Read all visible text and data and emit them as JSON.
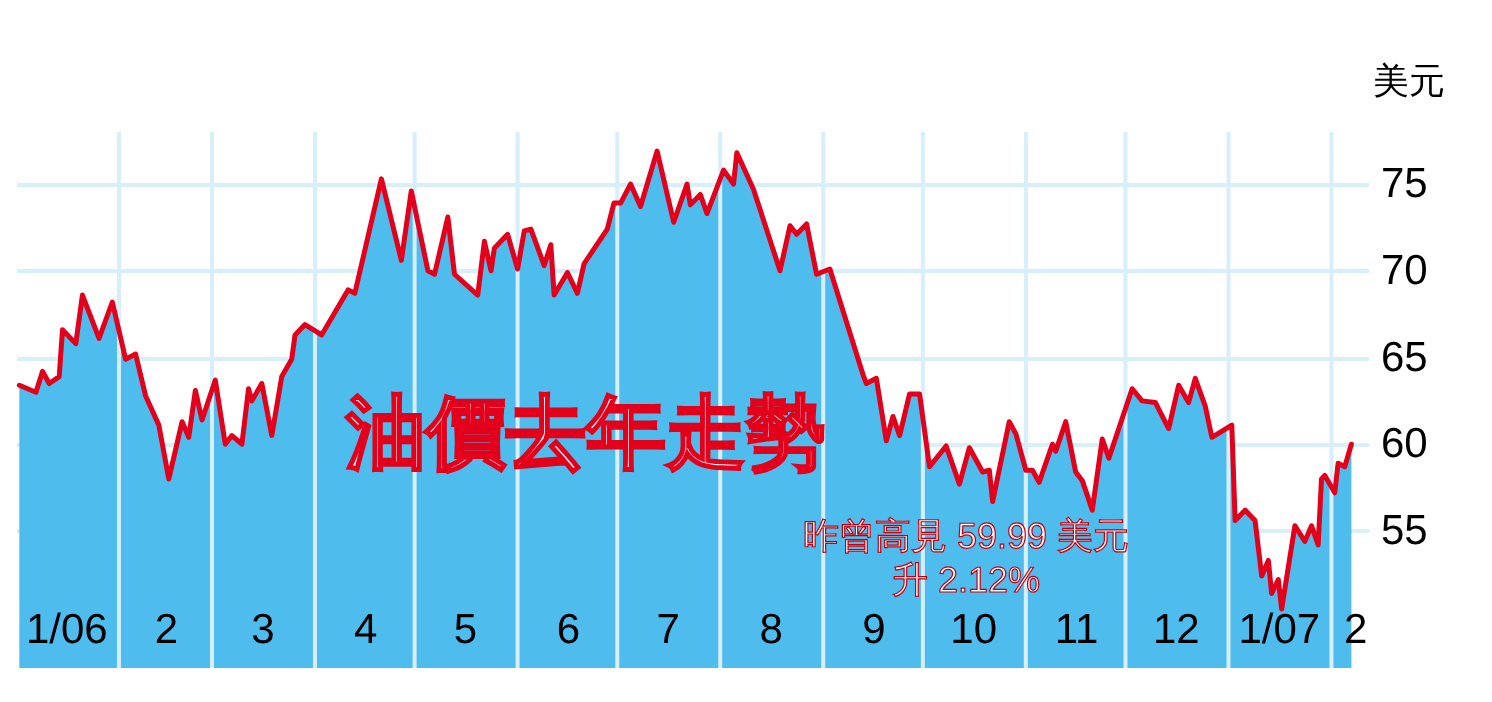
{
  "chart_data": {
    "type": "area",
    "title": "油價去年走勢",
    "ylabel": "美元",
    "annotations": [
      "昨曾高見 59.99 美元",
      "升 2.12%"
    ],
    "x": [
      "2006-01-02",
      "2006-01-07",
      "2006-01-09",
      "2006-01-11",
      "2006-01-14",
      "2006-01-15",
      "2006-01-19",
      "2006-01-21",
      "2006-01-26",
      "2006-01-30",
      "2006-02-03",
      "2006-02-06",
      "2006-02-09",
      "2006-02-13",
      "2006-02-16",
      "2006-02-20",
      "2006-02-22",
      "2006-02-24",
      "2006-02-26",
      "2006-03-02",
      "2006-03-05",
      "2006-03-07",
      "2006-03-10",
      "2006-03-12",
      "2006-03-13",
      "2006-03-16",
      "2006-03-19",
      "2006-03-22",
      "2006-03-25",
      "2006-03-26",
      "2006-03-29",
      "2006-04-03",
      "2006-04-11",
      "2006-04-13",
      "2006-04-21",
      "2006-04-27",
      "2006-04-30",
      "2006-05-05",
      "2006-05-07",
      "2006-05-11",
      "2006-05-13",
      "2006-05-20",
      "2006-05-22",
      "2006-05-24",
      "2006-05-25",
      "2006-05-29",
      "2006-06-01",
      "2006-06-03",
      "2006-06-05",
      "2006-06-09",
      "2006-06-11",
      "2006-06-12",
      "2006-06-16",
      "2006-06-19",
      "2006-06-21",
      "2006-06-28",
      "2006-06-30",
      "2006-07-02",
      "2006-07-05",
      "2006-07-08",
      "2006-07-13",
      "2006-07-18",
      "2006-07-22",
      "2006-07-23",
      "2006-07-26",
      "2006-07-28",
      "2006-08-02",
      "2006-08-05",
      "2006-08-06",
      "2006-08-11",
      "2006-08-19",
      "2006-08-22",
      "2006-08-24",
      "2006-08-27",
      "2006-08-30",
      "2006-09-03",
      "2006-09-13",
      "2006-09-14",
      "2006-09-17",
      "2006-09-20",
      "2006-09-22",
      "2006-09-24",
      "2006-09-27",
      "2006-09-30",
      "2006-10-03",
      "2006-10-08",
      "2006-10-12",
      "2006-10-15",
      "2006-10-19",
      "2006-10-21",
      "2006-10-22",
      "2006-10-27",
      "2006-10-29",
      "2006-11-01",
      "2006-11-03",
      "2006-11-05",
      "2006-11-09",
      "2006-11-10",
      "2006-11-13",
      "2006-11-16",
      "2006-11-18",
      "2006-11-21",
      "2006-11-24",
      "2006-11-26",
      "2006-12-03",
      "2006-12-06",
      "2006-12-10",
      "2006-12-14",
      "2006-12-17",
      "2006-12-20",
      "2006-12-22",
      "2006-12-25",
      "2006-12-27",
      "2007-01-02",
      "2007-01-03",
      "2007-01-06",
      "2007-01-09",
      "2007-01-11",
      "2007-01-13",
      "2007-01-14",
      "2007-01-16",
      "2007-01-17",
      "2007-01-21",
      "2007-01-24",
      "2007-01-26",
      "2007-01-28",
      "2007-01-29",
      "2007-01-30",
      "2007-02-02",
      "2007-02-03",
      "2007-02-05",
      "2007-02-07"
    ],
    "series": [
      {
        "color": "#4fbcee",
        "values": [
          63.4,
          63.0,
          64.2,
          63.5,
          63.9,
          66.6,
          65.8,
          68.6,
          66.1,
          68.2,
          64.9,
          65.2,
          62.8,
          61.1,
          58.0,
          61.3,
          60.4,
          63.1,
          61.4,
          63.7,
          60.0,
          60.5,
          60.0,
          63.2,
          62.5,
          63.5,
          60.5,
          63.9,
          64.9,
          66.3,
          66.9,
          66.3,
          68.9,
          68.7,
          75.3,
          70.6,
          74.6,
          70.0,
          69.8,
          73.1,
          69.8,
          68.6,
          71.7,
          70.0,
          71.3,
          72.1,
          70.1,
          72.3,
          72.4,
          70.3,
          71.5,
          68.6,
          69.9,
          68.7,
          70.4,
          72.4,
          73.9,
          73.9,
          75.0,
          73.7,
          76.9,
          72.8,
          75.0,
          73.8,
          74.4,
          73.3,
          75.8,
          75.0,
          76.8,
          74.7,
          70.0,
          72.6,
          72.1,
          72.7,
          69.8,
          70.1,
          64.0,
          63.5,
          63.8,
          60.2,
          61.6,
          60.5,
          62.9,
          62.9,
          58.7,
          59.9,
          57.7,
          59.8,
          58.4,
          58.5,
          56.7,
          61.3,
          60.6,
          58.5,
          58.5,
          57.8,
          60.0,
          59.6,
          61.3,
          58.4,
          57.9,
          56.2,
          60.3,
          59.2,
          63.2,
          62.5,
          62.4,
          60.9,
          63.4,
          62.4,
          63.8,
          62.2,
          60.4,
          61.1,
          55.6,
          56.2,
          55.6,
          52.4,
          53.3,
          51.4,
          52.2,
          50.5,
          55.3,
          54.4,
          55.3,
          54.2,
          58.0,
          58.2,
          57.2,
          58.9,
          58.7,
          60.0
        ]
      },
      {
        "type": "line",
        "color": "#e3001b",
        "values": [
          63.4,
          63.0,
          64.2,
          63.5,
          63.9,
          66.6,
          65.8,
          68.6,
          66.1,
          68.2,
          64.9,
          65.2,
          62.8,
          61.1,
          58.0,
          61.3,
          60.4,
          63.1,
          61.4,
          63.7,
          60.0,
          60.5,
          60.0,
          63.2,
          62.5,
          63.5,
          60.5,
          63.9,
          64.9,
          66.3,
          66.9,
          66.3,
          68.9,
          68.7,
          75.3,
          70.6,
          74.6,
          70.0,
          69.8,
          73.1,
          69.8,
          68.6,
          71.7,
          70.0,
          71.3,
          72.1,
          70.1,
          72.3,
          72.4,
          70.3,
          71.5,
          68.6,
          69.9,
          68.7,
          70.4,
          72.4,
          73.9,
          73.9,
          75.0,
          73.7,
          76.9,
          72.8,
          75.0,
          73.8,
          74.4,
          73.3,
          75.8,
          75.0,
          76.8,
          74.7,
          70.0,
          72.6,
          72.1,
          72.7,
          69.8,
          70.1,
          64.0,
          63.5,
          63.8,
          60.2,
          61.6,
          60.5,
          62.9,
          62.9,
          58.7,
          59.9,
          57.7,
          59.8,
          58.4,
          58.5,
          56.7,
          61.3,
          60.6,
          58.5,
          58.5,
          57.8,
          60.0,
          59.6,
          61.3,
          58.4,
          57.9,
          56.2,
          60.3,
          59.2,
          63.2,
          62.5,
          62.4,
          60.9,
          63.4,
          62.4,
          63.8,
          62.2,
          60.4,
          61.1,
          55.6,
          56.2,
          55.6,
          52.4,
          53.3,
          51.4,
          52.2,
          50.5,
          55.3,
          54.4,
          55.3,
          54.2,
          58.0,
          58.2,
          57.2,
          58.9,
          58.7,
          60.0
        ]
      }
    ],
    "xlim": [
      "2006-01-01",
      "2007-02-12"
    ],
    "xticks": [
      {
        "value": "2006-01-16",
        "label": "1/06"
      },
      {
        "value": "2006-02-01",
        "label": null
      },
      {
        "value": "2006-02-15",
        "label": "2"
      },
      {
        "value": "2006-03-01",
        "label": null
      },
      {
        "value": "2006-03-16",
        "label": "3"
      },
      {
        "value": "2006-04-01",
        "label": null
      },
      {
        "value": "2006-04-16",
        "label": "4"
      },
      {
        "value": "2006-05-01",
        "label": null
      },
      {
        "value": "2006-05-16",
        "label": "5"
      },
      {
        "value": "2006-06-01",
        "label": null
      },
      {
        "value": "2006-06-16",
        "label": "6"
      },
      {
        "value": "2006-07-01",
        "label": null
      },
      {
        "value": "2006-07-16",
        "label": "7"
      },
      {
        "value": "2006-08-01",
        "label": null
      },
      {
        "value": "2006-08-16",
        "label": "8"
      },
      {
        "value": "2006-09-01",
        "label": null
      },
      {
        "value": "2006-09-16",
        "label": "9"
      },
      {
        "value": "2006-10-01",
        "label": null
      },
      {
        "value": "2006-10-16",
        "label": "10"
      },
      {
        "value": "2006-11-01",
        "label": null
      },
      {
        "value": "2006-11-16",
        "label": "11"
      },
      {
        "value": "2006-12-01",
        "label": null
      },
      {
        "value": "2006-12-16",
        "label": "12"
      },
      {
        "value": "2007-01-01",
        "label": null
      },
      {
        "value": "2007-01-16",
        "label": "1/07"
      },
      {
        "value": "2007-02-01",
        "label": null
      },
      {
        "value": "2007-02-08",
        "label": "2"
      }
    ],
    "ylim": [
      47.1,
      78
    ],
    "yticks": [
      55,
      60,
      65,
      70,
      75
    ],
    "grid": true
  }
}
